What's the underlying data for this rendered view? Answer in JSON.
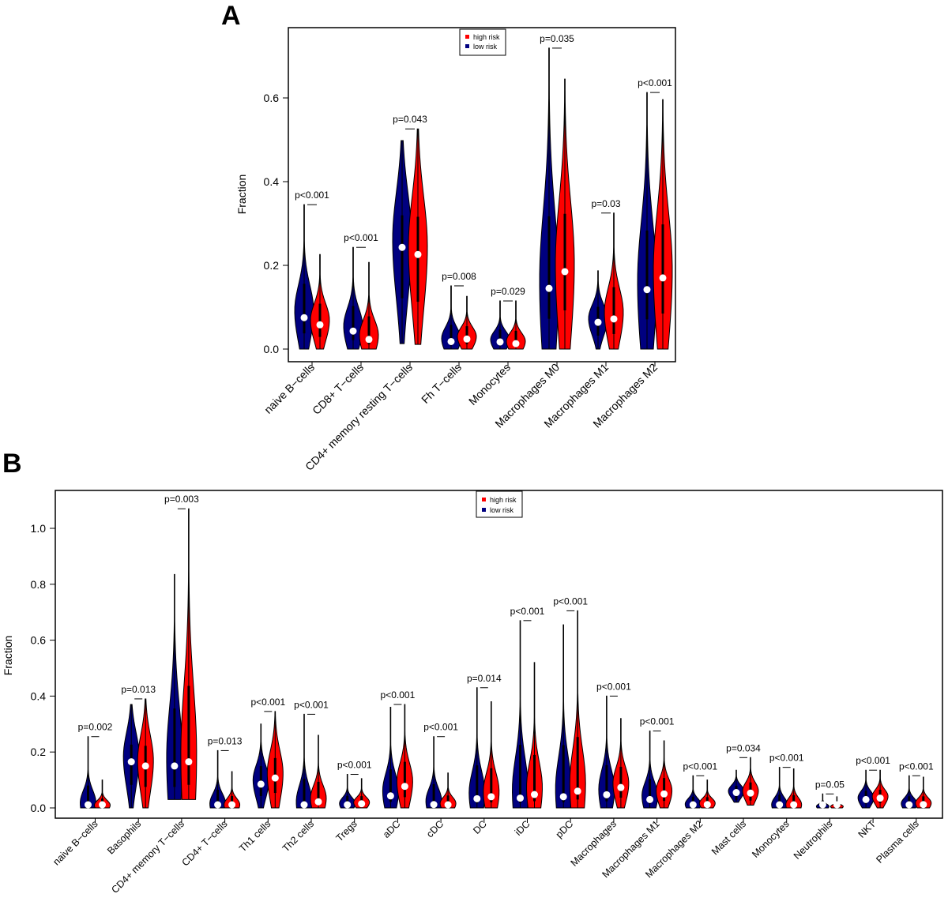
{
  "colors": {
    "low_risk": "#000080",
    "high_risk": "#FF0000",
    "median_dot": "#FFFFFF",
    "outline": "#000000"
  },
  "legend": {
    "items": [
      {
        "label": "high risk",
        "color": "#FF0000"
      },
      {
        "label": "low risk",
        "color": "#000080"
      }
    ]
  },
  "chart_data": [
    {
      "panel": "A",
      "type": "violin",
      "title": "",
      "xlabel": "",
      "ylabel": "Fraction",
      "ylim": [
        0,
        0.75
      ],
      "yticks": [
        "0.0",
        "0.2",
        "0.4",
        "0.6"
      ],
      "ytick_values": [
        0,
        0.2,
        0.4,
        0.6
      ],
      "grid": false,
      "legend_position": "top-center",
      "categories": [
        "naive B−cells",
        "CD8+ T−cells",
        "CD4+ memory resting T−cells",
        "Fh T−cells",
        "Monocytes",
        "Macrophages M0",
        "Macrophages M1",
        "Macrophages M2"
      ],
      "p_values": [
        "p<0.001",
        "p<0.001",
        "p=0.043",
        "p=0.008",
        "p=0.029",
        "p=0.035",
        "p=0.03",
        "p<0.001"
      ],
      "series": [
        {
          "name": "low risk",
          "min": [
            0,
            0,
            0.013,
            0,
            0,
            0,
            0,
            0
          ],
          "median": [
            0.075,
            0.043,
            0.243,
            0.018,
            0.017,
            0.145,
            0.064,
            0.142
          ],
          "max": [
            0.345,
            0.243,
            0.498,
            0.151,
            0.115,
            0.719,
            0.187,
            0.613
          ]
        },
        {
          "name": "high risk",
          "min": [
            0,
            0,
            0.011,
            0,
            0,
            0,
            0,
            0
          ],
          "median": [
            0.058,
            0.023,
            0.226,
            0.024,
            0.013,
            0.185,
            0.072,
            0.17
          ],
          "max": [
            0.226,
            0.207,
            0.526,
            0.126,
            0.115,
            0.645,
            0.325,
            0.596
          ]
        }
      ]
    },
    {
      "panel": "B",
      "type": "violin",
      "title": "",
      "xlabel": "",
      "ylabel": "Fraction",
      "ylim": [
        0,
        1.1
      ],
      "yticks": [
        "0.0",
        "0.2",
        "0.4",
        "0.6",
        "0.8",
        "1.0"
      ],
      "ytick_values": [
        0,
        0.2,
        0.4,
        0.6,
        0.8,
        1.0
      ],
      "grid": false,
      "legend_position": "top-center",
      "categories": [
        "naive B−cells",
        "Basophils",
        "CD4+ memory T−cells",
        "CD4+ T−cells",
        "Th1 cells",
        "Th2 cells",
        "Tregs",
        "aDC",
        "cDC",
        "DC",
        "iDC",
        "pDC",
        "Macrophages",
        "Macrophages M1",
        "Macrophages M2",
        "Mast cells",
        "Monocytes",
        "Neutrophils",
        "NKT",
        "Plasma cells"
      ],
      "p_values": [
        "p=0.002",
        "p=0.013",
        "p=0.003",
        "p=0.013",
        "p<0.001",
        "p<0.001",
        "p<0.001",
        "p<0.001",
        "p<0.001",
        "p=0.014",
        "p<0.001",
        "p<0.001",
        "p<0.001",
        "p<0.001",
        "p<0.001",
        "p=0.034",
        "p<0.001",
        "p=0.05",
        "p<0.001",
        "p<0.001"
      ],
      "series": [
        {
          "name": "low risk",
          "min": [
            0,
            0,
            0.03,
            0,
            0,
            0,
            0,
            0,
            0,
            0,
            0,
            0,
            0,
            0,
            0,
            0.02,
            0,
            0,
            0,
            0
          ],
          "median": [
            0.005,
            0.165,
            0.15,
            0.005,
            0.085,
            0.005,
            0.01,
            0.043,
            0.012,
            0.033,
            0.035,
            0.04,
            0.047,
            0.03,
            0.008,
            0.055,
            0.005,
            0.003,
            0.03,
            0.01
          ],
          "max": [
            0.255,
            0.37,
            0.835,
            0.205,
            0.3,
            0.335,
            0.12,
            0.36,
            0.255,
            0.43,
            0.67,
            0.655,
            0.4,
            0.275,
            0.115,
            0.135,
            0.145,
            0.05,
            0.135,
            0.115
          ]
        },
        {
          "name": "high risk",
          "min": [
            0,
            0,
            0.03,
            0,
            0,
            0,
            0,
            0,
            0,
            0,
            0,
            0,
            0,
            0,
            0,
            0.01,
            0,
            0,
            0,
            0
          ],
          "median": [
            0.005,
            0.15,
            0.165,
            0.005,
            0.107,
            0.022,
            0.015,
            0.077,
            0.01,
            0.04,
            0.048,
            0.06,
            0.073,
            0.05,
            0.012,
            0.053,
            0.005,
            0.003,
            0.035,
            0.012
          ],
          "max": [
            0.1,
            0.39,
            1.07,
            0.13,
            0.345,
            0.26,
            0.105,
            0.37,
            0.125,
            0.38,
            0.52,
            0.705,
            0.32,
            0.24,
            0.1,
            0.18,
            0.14,
            0.04,
            0.135,
            0.11
          ]
        }
      ]
    }
  ]
}
